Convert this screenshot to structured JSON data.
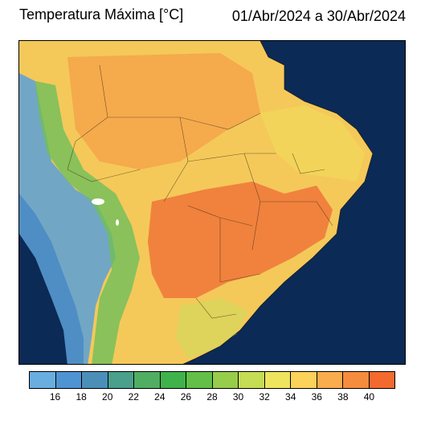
{
  "header": {
    "title": "Temperatura Máxima [°C]",
    "period": "01/Abr/2024 a 30/Abr/2024"
  },
  "colorbar": {
    "colors": [
      "#6aaee0",
      "#4f94d2",
      "#4b8fb9",
      "#4aa08a",
      "#4fae62",
      "#3fb24c",
      "#63bf47",
      "#97cd4b",
      "#c5dc55",
      "#eee45e",
      "#fbd25a",
      "#f9ad4d",
      "#f68c3d",
      "#f26a2d"
    ],
    "tick_labels": [
      "16",
      "18",
      "20",
      "22",
      "24",
      "26",
      "28",
      "30",
      "32",
      "34",
      "36",
      "38",
      "40"
    ]
  },
  "map": {
    "ocean_color": "#0b2a55",
    "land_color": "#f4c95a",
    "hot_color": "#f07a3a",
    "cool_color": "#5aa0d8"
  }
}
